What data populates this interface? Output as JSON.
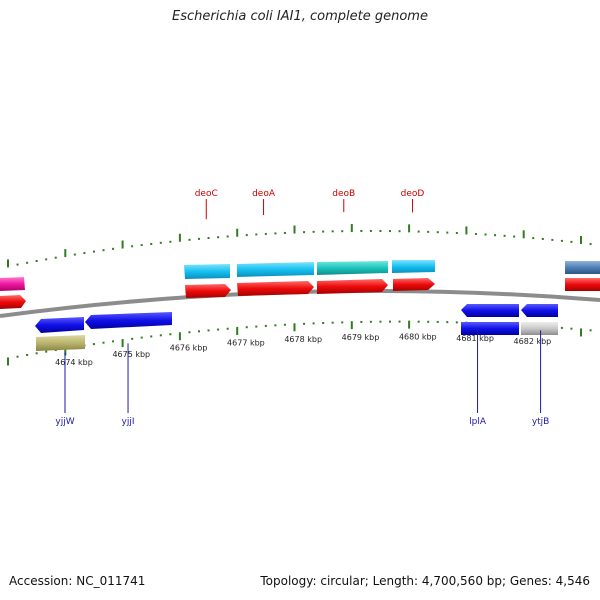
{
  "title": "Escherichia coli IAI1, complete genome",
  "footer": {
    "accession": "Accession: NC_011741",
    "summary": "Topology: circular; Length: 4,700,560 bp; Genes: 4,546"
  },
  "colors": {
    "backbone": "#888888",
    "tick": "#2e7d1e",
    "label_red": "#cc0000",
    "label_blue": "#1a1aaa"
  },
  "axis_labels": [
    {
      "kbp": 4674,
      "text": "4674 kbp"
    },
    {
      "kbp": 4675,
      "text": "4675 kbp"
    },
    {
      "kbp": 4676,
      "text": "4676 kbp"
    },
    {
      "kbp": 4677,
      "text": "4677 kbp"
    },
    {
      "kbp": 4678,
      "text": "4678 kbp"
    },
    {
      "kbp": 4679,
      "text": "4679 kbp"
    },
    {
      "kbp": 4680,
      "text": "4680 kbp"
    },
    {
      "kbp": 4681,
      "text": "4681 kbp"
    },
    {
      "kbp": 4682,
      "text": "4682 kbp"
    }
  ],
  "gene_labels": [
    {
      "name": "deoC",
      "kbp": 4676.5,
      "side": "top"
    },
    {
      "name": "deoA",
      "kbp": 4677.5,
      "side": "top"
    },
    {
      "name": "deoB",
      "kbp": 4678.9,
      "side": "top"
    },
    {
      "name": "deoD",
      "kbp": 4680.1,
      "side": "top"
    },
    {
      "name": "yjjW",
      "kbp": 4674.0,
      "side": "bottom"
    },
    {
      "name": "yjjI",
      "kbp": 4675.1,
      "side": "bottom"
    },
    {
      "name": "lplA",
      "kbp": 4681.2,
      "side": "bottom"
    },
    {
      "name": "ytjB",
      "kbp": 4682.3,
      "side": "bottom"
    }
  ]
}
